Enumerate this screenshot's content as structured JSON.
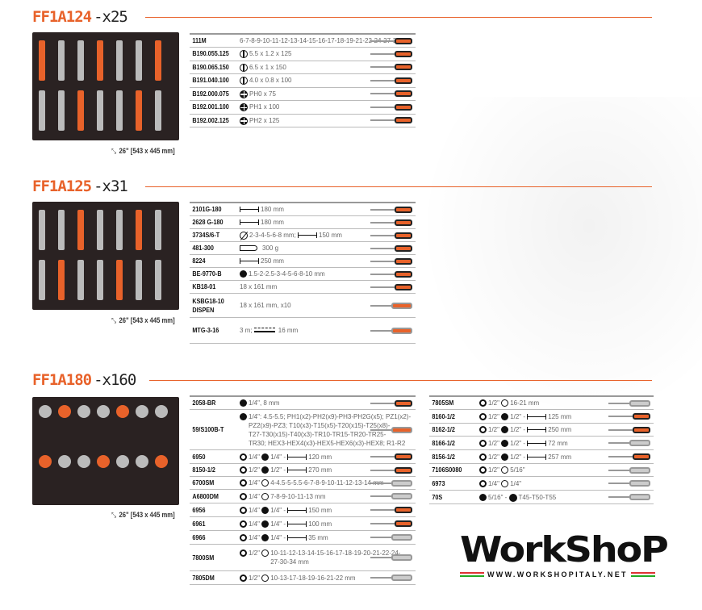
{
  "colors": {
    "accent": "#e8622a",
    "tray": "#2a2222"
  },
  "sections": [
    {
      "code": "FF1A124",
      "qty": "-x25",
      "caption": "26\" [543 x 445 mm]",
      "caption_icon": "expand-icon",
      "rows": [
        {
          "code": "111M",
          "spec": [
            {
              "t": "6-7-8-9-10-11-12-13-14-15-16-17-18-19-21-22-24-27-32 mm"
            }
          ],
          "tool": "combination-wrench"
        },
        {
          "code": "B190.055.125",
          "spec": [
            {
              "i": "slot",
              "t": "5.5 x 1.2 x 125"
            }
          ],
          "tool": "screwdriver"
        },
        {
          "code": "B190.065.150",
          "spec": [
            {
              "i": "slot",
              "t": "6.5 x 1 x 150"
            }
          ],
          "tool": "screwdriver"
        },
        {
          "code": "B191.040.100",
          "spec": [
            {
              "i": "slot",
              "t": "4.0 x 0.8 x 100"
            }
          ],
          "tool": "screwdriver"
        },
        {
          "code": "B192.000.075",
          "spec": [
            {
              "i": "ph",
              "t": "PH0 x 75"
            }
          ],
          "tool": "screwdriver"
        },
        {
          "code": "B192.001.100",
          "spec": [
            {
              "i": "ph",
              "t": "PH1 x 100"
            }
          ],
          "tool": "screwdriver"
        },
        {
          "code": "B192.002.125",
          "spec": [
            {
              "i": "ph",
              "t": "PH2 x 125"
            }
          ],
          "tool": "screwdriver"
        }
      ]
    },
    {
      "code": "FF1A125",
      "qty": "-x31",
      "caption": "26\" [543 x 445 mm]",
      "caption_icon": "expand-icon",
      "rows": [
        {
          "code": "2101G-180",
          "spec": [
            {
              "i": "len",
              "t": "180 mm"
            }
          ],
          "tool": "pliers"
        },
        {
          "code": "2628 G-180",
          "spec": [
            {
              "i": "len",
              "t": "180 mm"
            }
          ],
          "tool": "pliers"
        },
        {
          "code": "3734S/6-T",
          "spec": [
            {
              "i": "dia",
              "t": "2-3-4-5-6-8 mm; "
            },
            {
              "i": "len",
              "t": "150 mm"
            }
          ],
          "tool": "punch"
        },
        {
          "code": "481-300",
          "spec": [
            {
              "i": "weight",
              "t": "300 g"
            }
          ],
          "tool": "hammer"
        },
        {
          "code": "8224",
          "spec": [
            {
              "i": "len",
              "t": "250 mm"
            }
          ],
          "tool": "water-pump-pliers"
        },
        {
          "code": "BE-9770-B",
          "spec": [
            {
              "i": "hex",
              "t": "1.5-2-2.5-3-4-5-6-8-10 mm"
            }
          ],
          "tool": "hex-key-set"
        },
        {
          "code": "KB18-01",
          "spec": [
            {
              "t": "18 x 161 mm"
            }
          ],
          "tool": "knife"
        },
        {
          "code": "KSBG18-10\nDISPEN",
          "spec": [
            {
              "t": "18 x 161 mm, x10"
            }
          ],
          "tool": "blade-dispenser"
        },
        {
          "code": "MTG-3-16",
          "spec": [
            {
              "t": "3 m; "
            },
            {
              "i": "tape",
              "t": "16 mm"
            }
          ],
          "tool": "tape-measure"
        }
      ]
    },
    {
      "code": "FF1A180",
      "qty": "-x160",
      "caption": "26\" [543 x 445 mm]",
      "caption_icon": "expand-icon",
      "rows": [
        {
          "code": "2058-BR",
          "spec": [
            {
              "i": "hex",
              "t": "1/4\", 8 mm"
            }
          ],
          "tool": "ratchet-wrench"
        },
        {
          "code": "59/S100B-T",
          "spec": [
            {
              "i": "hex",
              "t": "1/4\": 4.5-5.5; PH1(x2)-PH2(x9)-PH3-PH2G(x5); PZ1(x2)-\nPZ2(x9)-PZ3; T10(x3)-T15(x5)-T20(x15)-T25(x8)-\nT27-T30(x15)-T40(x3)-TR10-TR15-TR20-TR25-\nTR30; HEX3-HEX4(x3)-HEX5-HEX6(x3)-HEX8; R1-R2"
            }
          ],
          "tool": "bit-case"
        },
        {
          "code": "6950",
          "spec": [
            {
              "i": "sq",
              "t": "1/4\" "
            },
            {
              "i": "hex",
              "t": "1/4\" - "
            },
            {
              "i": "len",
              "t": "120 mm"
            }
          ],
          "tool": "ratchet"
        },
        {
          "code": "8150-1/2",
          "spec": [
            {
              "i": "sq",
              "t": "1/2\" "
            },
            {
              "i": "hex",
              "t": "1/2\" - "
            },
            {
              "i": "len",
              "t": "270 mm"
            }
          ],
          "tool": "ratchet"
        },
        {
          "code": "6700SM",
          "spec": [
            {
              "i": "sq",
              "t": "1/4\" "
            },
            {
              "i": "ring",
              "t": "4-4.5-5-5.5-6-7-8-9-10-11-12-13-14 mm"
            }
          ],
          "tool": "socket"
        },
        {
          "code": "A6800DM",
          "spec": [
            {
              "i": "sq",
              "t": "1/4\" "
            },
            {
              "i": "ring",
              "t": "7-8-9-10-11-13 mm"
            }
          ],
          "tool": "deep-socket"
        },
        {
          "code": "6956",
          "spec": [
            {
              "i": "sq",
              "t": "1/4\" "
            },
            {
              "i": "hex",
              "t": "1/4\" - "
            },
            {
              "i": "len",
              "t": "150 mm"
            }
          ],
          "tool": "spinner-handle"
        },
        {
          "code": "6961",
          "spec": [
            {
              "i": "sq",
              "t": "1/4\" "
            },
            {
              "i": "hex",
              "t": "1/4\" - "
            },
            {
              "i": "len",
              "t": "100 mm"
            }
          ],
          "tool": "extension-bar"
        },
        {
          "code": "6966",
          "spec": [
            {
              "i": "sq",
              "t": "1/4\" "
            },
            {
              "i": "hex",
              "t": "1/4\" - "
            },
            {
              "i": "len",
              "t": "35 mm"
            }
          ],
          "tool": "universal-joint"
        },
        {
          "code": "7800SM",
          "spec": [
            {
              "i": "sq",
              "t": "1/2\" "
            },
            {
              "i": "ring",
              "t": "10-11-12-13-14-15-16-17-18-19-20-21-22-24-\n27-30-34 mm"
            }
          ],
          "tool": "socket"
        },
        {
          "code": "7805DM",
          "spec": [
            {
              "i": "sq",
              "t": "1/2\" "
            },
            {
              "i": "ring",
              "t": "10-13-17-18-19-16-21-22 mm"
            }
          ],
          "tool": "deep-socket"
        }
      ],
      "rows_right": [
        {
          "code": "7805SM",
          "spec": [
            {
              "i": "sq",
              "t": "1/2\" "
            },
            {
              "i": "ring",
              "t": "16-21 mm"
            }
          ],
          "tool": "deep-socket"
        },
        {
          "code": "8160-1/2",
          "spec": [
            {
              "i": "sq",
              "t": "1/2\" "
            },
            {
              "i": "hex",
              "t": "1/2\" - "
            },
            {
              "i": "len",
              "t": "125 mm"
            }
          ],
          "tool": "extension-bar"
        },
        {
          "code": "8162-1/2",
          "spec": [
            {
              "i": "sq",
              "t": "1/2\" "
            },
            {
              "i": "hex",
              "t": "1/2\" - "
            },
            {
              "i": "len",
              "t": "250 mm"
            }
          ],
          "tool": "extension-bar"
        },
        {
          "code": "8166-1/2",
          "spec": [
            {
              "i": "sq",
              "t": "1/2\" "
            },
            {
              "i": "hex",
              "t": "1/2\" - "
            },
            {
              "i": "len",
              "t": "72 mm"
            }
          ],
          "tool": "universal-joint"
        },
        {
          "code": "8156-1/2",
          "spec": [
            {
              "i": "sq",
              "t": "1/2\" "
            },
            {
              "i": "hex",
              "t": "1/2\" - "
            },
            {
              "i": "len",
              "t": "257 mm"
            }
          ],
          "tool": "sliding-t-bar"
        },
        {
          "code": "7106S0080",
          "spec": [
            {
              "i": "sq",
              "t": "1/2\" "
            },
            {
              "i": "ring",
              "t": "5/16\""
            }
          ],
          "tool": "adaptor"
        },
        {
          "code": "6973",
          "spec": [
            {
              "i": "sq",
              "t": "1/4\" "
            },
            {
              "i": "ring",
              "t": "1/4\""
            }
          ],
          "tool": "adaptor"
        },
        {
          "code": "70S",
          "spec": [
            {
              "i": "hex",
              "t": "5/16\" - "
            },
            {
              "i": "torx",
              "t": "T45-T50-T55"
            }
          ],
          "tool": "bit"
        }
      ]
    }
  ],
  "logo": {
    "word": "WorkShoP",
    "url": "WWW.WORKSHOPITALY.NET"
  }
}
